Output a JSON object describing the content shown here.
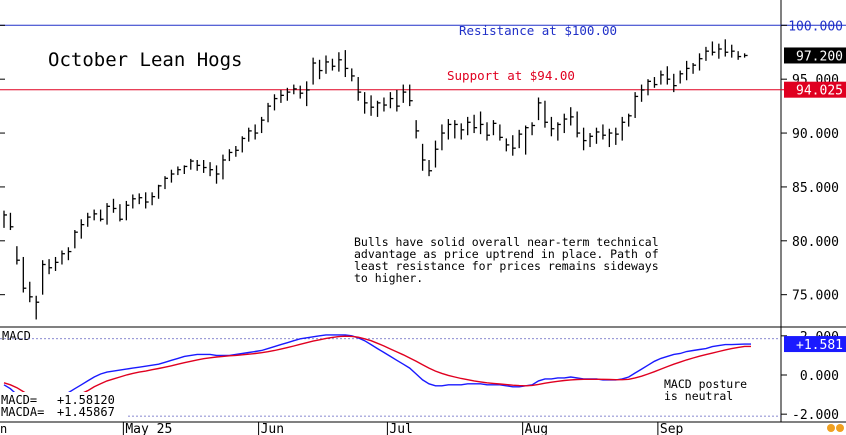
{
  "chart_data": [
    {
      "type": "ohlc",
      "title": "October Lean Hogs",
      "ylim": [
        72.0,
        100.4
      ],
      "yticks": [
        "75.000",
        "80.000",
        "85.000",
        "90.000",
        "95.000",
        "100.000"
      ],
      "months": [
        "May 25",
        "Jun",
        "Jul",
        "Aug",
        "Sep"
      ],
      "bars": [
        [
          82.8,
          81.2,
          82.4
        ],
        [
          82.6,
          81.0,
          81.3
        ],
        [
          79.5,
          77.8,
          78.2
        ],
        [
          78.5,
          75.2,
          75.6
        ],
        [
          76.2,
          74.3,
          74.8
        ],
        [
          74.9,
          72.7,
          74.3
        ],
        [
          78.2,
          75.0,
          77.8
        ],
        [
          78.3,
          76.9,
          77.5
        ],
        [
          78.5,
          77.2,
          78.0
        ],
        [
          79.1,
          77.8,
          78.8
        ],
        [
          79.4,
          78.2,
          79.0
        ],
        [
          81.0,
          79.3,
          80.8
        ],
        [
          82.0,
          80.2,
          81.5
        ],
        [
          82.6,
          81.3,
          82.2
        ],
        [
          82.9,
          81.9,
          82.5
        ],
        [
          82.9,
          81.8,
          82.0
        ],
        [
          83.5,
          81.5,
          83.2
        ],
        [
          83.9,
          82.6,
          83.0
        ],
        [
          83.4,
          81.8,
          82.0
        ],
        [
          83.7,
          81.9,
          83.3
        ],
        [
          84.3,
          83.0,
          83.9
        ],
        [
          84.4,
          83.4,
          84.0
        ],
        [
          84.5,
          83.0,
          83.6
        ],
        [
          84.5,
          83.3,
          84.1
        ],
        [
          85.2,
          83.9,
          85.1
        ],
        [
          86.0,
          84.8,
          85.8
        ],
        [
          86.6,
          85.4,
          86.2
        ],
        [
          86.9,
          86.1,
          86.6
        ],
        [
          87.0,
          86.2,
          86.9
        ],
        [
          87.6,
          86.6,
          87.4
        ],
        [
          87.5,
          86.5,
          87.0
        ],
        [
          87.5,
          86.3,
          86.8
        ],
        [
          87.3,
          86.0,
          86.6
        ],
        [
          87.0,
          85.3,
          86.2
        ],
        [
          88.0,
          85.7,
          87.5
        ],
        [
          88.5,
          87.4,
          88.2
        ],
        [
          88.8,
          87.8,
          88.4
        ],
        [
          89.7,
          88.2,
          89.5
        ],
        [
          90.5,
          89.2,
          90.2
        ],
        [
          90.8,
          89.4,
          90.0
        ],
        [
          91.5,
          90.0,
          91.2
        ],
        [
          92.8,
          91.0,
          92.5
        ],
        [
          93.6,
          92.1,
          93.2
        ],
        [
          94.0,
          92.8,
          93.5
        ],
        [
          94.2,
          93.0,
          93.8
        ],
        [
          94.5,
          93.6,
          94.1
        ],
        [
          94.4,
          93.2,
          93.7
        ],
        [
          94.8,
          92.5,
          94.0
        ],
        [
          97.0,
          94.5,
          96.5
        ],
        [
          96.8,
          95.0,
          95.8
        ],
        [
          97.2,
          95.5,
          96.6
        ],
        [
          96.9,
          95.8,
          96.2
        ],
        [
          97.5,
          95.7,
          96.8
        ],
        [
          97.7,
          95.2,
          96.0
        ],
        [
          96.0,
          94.8,
          95.3
        ],
        [
          95.2,
          93.0,
          93.8
        ],
        [
          93.8,
          91.8,
          92.8
        ],
        [
          93.5,
          91.6,
          92.4
        ],
        [
          93.0,
          91.5,
          92.8
        ],
        [
          93.3,
          92.0,
          92.6
        ],
        [
          93.8,
          92.3,
          93.2
        ],
        [
          94.0,
          92.0,
          92.5
        ],
        [
          94.5,
          92.8,
          93.8
        ],
        [
          94.5,
          92.5,
          93.0
        ],
        [
          91.2,
          89.5,
          90.2
        ],
        [
          89.0,
          86.5,
          87.5
        ],
        [
          87.5,
          86.0,
          86.5
        ],
        [
          89.3,
          86.8,
          88.5
        ],
        [
          90.8,
          88.4,
          90.0
        ],
        [
          91.3,
          89.4,
          90.8
        ],
        [
          91.2,
          89.5,
          90.8
        ],
        [
          90.9,
          89.4,
          90.3
        ],
        [
          91.5,
          89.8,
          91.0
        ],
        [
          91.7,
          90.0,
          90.5
        ],
        [
          92.0,
          89.9,
          90.8
        ],
        [
          91.0,
          89.3,
          89.8
        ],
        [
          91.2,
          89.8,
          90.9
        ],
        [
          90.8,
          89.3,
          89.6
        ],
        [
          89.5,
          88.3,
          88.9
        ],
        [
          89.8,
          87.9,
          88.6
        ],
        [
          90.3,
          88.6,
          89.9
        ],
        [
          90.7,
          88.0,
          90.5
        ],
        [
          91.0,
          89.8,
          90.7
        ],
        [
          93.3,
          91.2,
          92.8
        ],
        [
          93.0,
          90.5,
          91.0
        ],
        [
          91.5,
          89.7,
          90.4
        ],
        [
          91.0,
          89.3,
          90.8
        ],
        [
          91.8,
          90.0,
          91.3
        ],
        [
          92.4,
          90.7,
          91.5
        ],
        [
          92.0,
          89.6,
          90.0
        ],
        [
          90.5,
          88.4,
          89.3
        ],
        [
          90.0,
          88.7,
          89.7
        ],
        [
          90.5,
          89.0,
          90.1
        ],
        [
          90.8,
          89.4,
          89.8
        ],
        [
          90.4,
          88.7,
          90.0
        ],
        [
          90.5,
          88.9,
          89.9
        ],
        [
          91.5,
          89.3,
          91.0
        ],
        [
          91.8,
          90.6,
          91.6
        ],
        [
          93.8,
          91.4,
          93.4
        ],
        [
          94.5,
          92.9,
          94.0
        ],
        [
          95.0,
          93.5,
          94.8
        ],
        [
          95.2,
          94.2,
          94.5
        ],
        [
          95.8,
          94.5,
          95.4
        ],
        [
          96.2,
          94.5,
          95.0
        ],
        [
          95.5,
          93.8,
          94.4
        ],
        [
          95.8,
          94.6,
          95.5
        ],
        [
          96.7,
          94.9,
          96.0
        ],
        [
          96.5,
          95.5,
          96.3
        ],
        [
          97.4,
          95.8,
          96.9
        ],
        [
          98.0,
          96.7,
          97.6
        ],
        [
          98.5,
          97.2,
          97.5
        ],
        [
          98.3,
          96.9,
          97.8
        ],
        [
          98.7,
          97.1,
          97.5
        ],
        [
          98.2,
          97.0,
          97.6
        ],
        [
          97.6,
          96.8,
          97.1
        ],
        [
          97.4,
          97.0,
          97.2
        ]
      ],
      "current_price": "97.200",
      "resistance": {
        "value": 100.0,
        "label": "Resistance at $100.00",
        "axis_label": "100.000",
        "color": "#2030c8"
      },
      "support": {
        "value": 94.025,
        "label": "Support at $94.00",
        "axis_label": "94.025",
        "color": "#e00020"
      },
      "annotation": [
        "Bulls have solid overall near-term technical",
        "advantage as price uptrend in place. Path of",
        "least resistance for prices remains sideways",
        "to higher."
      ]
    },
    {
      "type": "line",
      "title": "MACD",
      "ylim": [
        -2.4,
        2.4
      ],
      "yticks": [
        "-2.000",
        "0.000",
        "2.000"
      ],
      "series": [
        {
          "name": "MACD",
          "color": "#1a1aff",
          "values": [
            -0.5,
            -0.7,
            -1.0,
            -1.3,
            -1.55,
            -1.7,
            -1.6,
            -1.45,
            -1.3,
            -1.1,
            -0.9,
            -0.7,
            -0.5,
            -0.3,
            -0.1,
            0.05,
            0.15,
            0.2,
            0.25,
            0.3,
            0.35,
            0.4,
            0.45,
            0.5,
            0.55,
            0.65,
            0.75,
            0.85,
            0.95,
            1.0,
            1.05,
            1.05,
            1.05,
            1.0,
            1.0,
            1.0,
            1.05,
            1.1,
            1.15,
            1.2,
            1.25,
            1.35,
            1.45,
            1.55,
            1.65,
            1.75,
            1.85,
            1.9,
            1.95,
            2.0,
            2.05,
            2.05,
            2.05,
            2.05,
            2.0,
            1.9,
            1.75,
            1.55,
            1.35,
            1.15,
            0.95,
            0.75,
            0.55,
            0.35,
            0.05,
            -0.25,
            -0.45,
            -0.55,
            -0.55,
            -0.5,
            -0.5,
            -0.5,
            -0.45,
            -0.45,
            -0.45,
            -0.5,
            -0.5,
            -0.5,
            -0.55,
            -0.6,
            -0.6,
            -0.55,
            -0.5,
            -0.3,
            -0.2,
            -0.2,
            -0.15,
            -0.15,
            -0.1,
            -0.15,
            -0.2,
            -0.2,
            -0.2,
            -0.25,
            -0.25,
            -0.25,
            -0.2,
            -0.1,
            0.1,
            0.3,
            0.5,
            0.7,
            0.85,
            0.95,
            1.05,
            1.1,
            1.2,
            1.25,
            1.3,
            1.35,
            1.45,
            1.5,
            1.55,
            1.55,
            1.57,
            1.58,
            1.58
          ]
        },
        {
          "name": "MACDA",
          "color": "#e00020",
          "values": [
            -0.4,
            -0.5,
            -0.65,
            -0.85,
            -1.05,
            -1.25,
            -1.35,
            -1.4,
            -1.4,
            -1.35,
            -1.25,
            -1.1,
            -0.95,
            -0.8,
            -0.6,
            -0.45,
            -0.3,
            -0.2,
            -0.1,
            0.0,
            0.08,
            0.15,
            0.2,
            0.27,
            0.33,
            0.4,
            0.47,
            0.55,
            0.63,
            0.7,
            0.77,
            0.83,
            0.88,
            0.92,
            0.95,
            0.98,
            1.0,
            1.03,
            1.06,
            1.1,
            1.14,
            1.19,
            1.25,
            1.32,
            1.4,
            1.48,
            1.57,
            1.65,
            1.73,
            1.8,
            1.87,
            1.92,
            1.96,
            1.98,
            1.97,
            1.93,
            1.85,
            1.75,
            1.62,
            1.48,
            1.33,
            1.18,
            1.03,
            0.87,
            0.7,
            0.52,
            0.35,
            0.2,
            0.08,
            -0.02,
            -0.1,
            -0.18,
            -0.24,
            -0.3,
            -0.35,
            -0.4,
            -0.43,
            -0.46,
            -0.49,
            -0.52,
            -0.54,
            -0.55,
            -0.53,
            -0.48,
            -0.42,
            -0.37,
            -0.32,
            -0.28,
            -0.25,
            -0.23,
            -0.22,
            -0.22,
            -0.22,
            -0.22,
            -0.23,
            -0.24,
            -0.24,
            -0.22,
            -0.15,
            -0.06,
            0.05,
            0.17,
            0.3,
            0.43,
            0.55,
            0.66,
            0.77,
            0.87,
            0.96,
            1.04,
            1.12,
            1.2,
            1.28,
            1.35,
            1.41,
            1.46,
            1.46
          ]
        }
      ],
      "guide_lines": [
        1.85,
        -2.1
      ],
      "macd_label": "+1.581",
      "readout": [
        {
          "name": "MACD=",
          "value": "+1.58120"
        },
        {
          "name": "MACDA=",
          "value": "+1.45867"
        }
      ],
      "annotation": [
        "MACD posture",
        "is neutral"
      ]
    }
  ],
  "top_left_label": "n"
}
